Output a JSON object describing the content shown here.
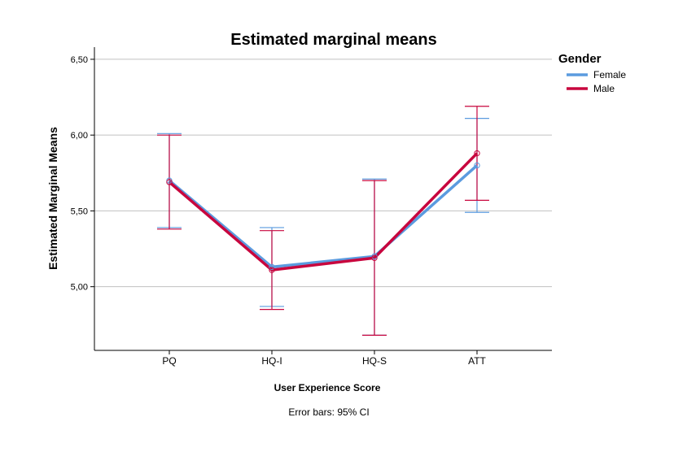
{
  "chart_data": {
    "type": "line",
    "title": "Estimated marginal means",
    "xlabel": "User Experience Score",
    "ylabel": "Estimated Marginal Means",
    "note": "Error bars: 95% CI",
    "categories": [
      "PQ",
      "HQ-I",
      "HQ-S",
      "ATT"
    ],
    "ylim": [
      4.58,
      6.58
    ],
    "yticks": [
      5.0,
      5.5,
      6.0,
      6.5
    ],
    "ytick_labels": [
      "5,00",
      "5,50",
      "6,00",
      "6,50"
    ],
    "grid": true,
    "legend": {
      "title": "Gender",
      "position": "top-right"
    },
    "series": [
      {
        "name": "Female",
        "color": "#5b9bdf",
        "values": [
          5.7,
          5.13,
          5.2,
          5.8
        ],
        "ci_low": [
          5.39,
          4.87,
          4.68,
          5.49
        ],
        "ci_high": [
          6.01,
          5.39,
          5.71,
          6.11
        ]
      },
      {
        "name": "Male",
        "color": "#c8063e",
        "values": [
          5.69,
          5.11,
          5.19,
          5.88
        ],
        "ci_low": [
          5.38,
          4.85,
          4.68,
          5.57
        ],
        "ci_high": [
          6.0,
          5.37,
          5.7,
          6.19
        ]
      }
    ]
  }
}
